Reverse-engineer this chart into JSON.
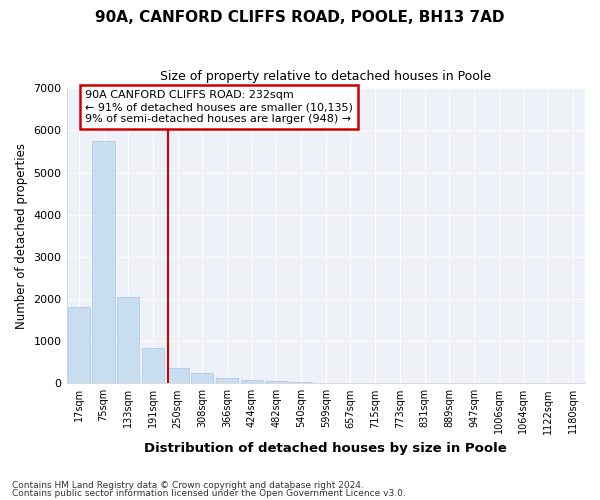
{
  "title1": "90A, CANFORD CLIFFS ROAD, POOLE, BH13 7AD",
  "title2": "Size of property relative to detached houses in Poole",
  "xlabel": "Distribution of detached houses by size in Poole",
  "ylabel": "Number of detached properties",
  "bar_values": [
    1800,
    5750,
    2050,
    830,
    370,
    240,
    130,
    80,
    50,
    20,
    10,
    5,
    2,
    1,
    0,
    0,
    0,
    0,
    0,
    0,
    0
  ],
  "bar_labels": [
    "17sqm",
    "75sqm",
    "133sqm",
    "191sqm",
    "250sqm",
    "308sqm",
    "366sqm",
    "424sqm",
    "482sqm",
    "540sqm",
    "599sqm",
    "657sqm",
    "715sqm",
    "773sqm",
    "831sqm",
    "889sqm",
    "947sqm",
    "1006sqm",
    "1064sqm",
    "1122sqm",
    "1180sqm"
  ],
  "bar_color": "#c8ddf0",
  "bar_edgecolor": "#a8c8e8",
  "grid_color": "#d0daea",
  "vline_x": 3.62,
  "vline_color": "#cc0000",
  "annotation_line1": "90A CANFORD CLIFFS ROAD: 232sqm",
  "annotation_line2": "← 91% of detached houses are smaller (10,135)",
  "annotation_line3": "9% of semi-detached houses are larger (948) →",
  "annotation_box_color": "#cc0000",
  "ylim": [
    0,
    7000
  ],
  "yticks": [
    0,
    1000,
    2000,
    3000,
    4000,
    5000,
    6000,
    7000
  ],
  "footnote1": "Contains HM Land Registry data © Crown copyright and database right 2024.",
  "footnote2": "Contains public sector information licensed under the Open Government Licence v3.0.",
  "bg_color": "#eef2f8",
  "fig_bg": "#ffffff"
}
